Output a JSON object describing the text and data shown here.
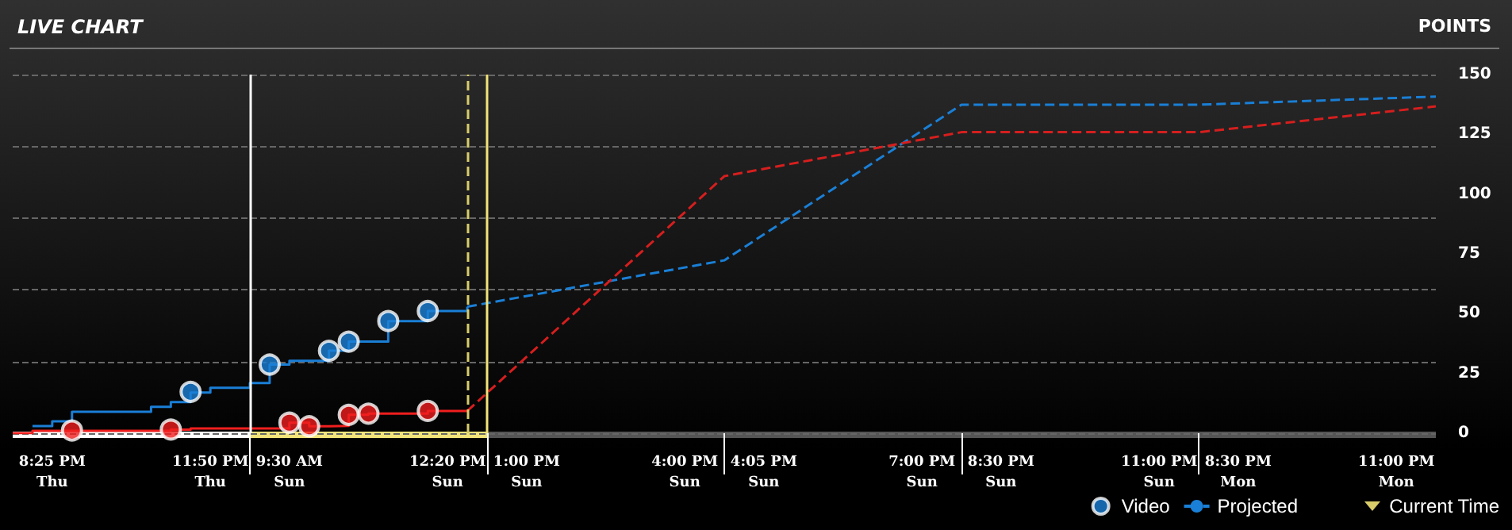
{
  "chart_data": {
    "type": "step",
    "title": "LIVE CHART",
    "ylabel": "POINTS",
    "categories": [
      null,
      null,
      "8:25 PM\nThu",
      null,
      null,
      null,
      null,
      null,
      null,
      null,
      "11:50 PM\nThu",
      null,
      null,
      null,
      "9:30 AM\nSun",
      null,
      null,
      null,
      null,
      null,
      null,
      null,
      "12:20 PM\nSun",
      null,
      null,
      null,
      "1:00 PM\nSun",
      null,
      null,
      null,
      null,
      null,
      null,
      null,
      "4:00 PM\nSun",
      null,
      null,
      null,
      "4:05 PM\nSun",
      null,
      null,
      null,
      null,
      null,
      null,
      null,
      "7:00 PM\nSun",
      null,
      null,
      null,
      "8:30 PM\nSun",
      null,
      null,
      null,
      null,
      null,
      null,
      null,
      "11:00 PM\nSun",
      null,
      null,
      null,
      "8:30 PM\nMon",
      null,
      null,
      null,
      null,
      null,
      null,
      null,
      "11:00 PM\nMon",
      null,
      null
    ],
    "ylim": [
      0,
      150
    ],
    "yticks": [
      0,
      25,
      50,
      75,
      100,
      125,
      150
    ],
    "grid": "y",
    "legend": "bottom right",
    "marker": "none",
    "series": [
      {
        "color": "#1a7fd6",
        "values": [
          null,
          3,
          5,
          9,
          null,
          null,
          null,
          11,
          13,
          17,
          19,
          null,
          21,
          28.7,
          30.3,
          null,
          34.5,
          38.3,
          null,
          46.9,
          null,
          51.1,
          null,
          52.9,
          null,
          null,
          null,
          null,
          null,
          null,
          null,
          null,
          null,
          null,
          null,
          null,
          null,
          null,
          null,
          null,
          null,
          null,
          null,
          null,
          null,
          null,
          null,
          null,
          null,
          null,
          null,
          null,
          null,
          null,
          null,
          null,
          null,
          null,
          null,
          null,
          null,
          null,
          null,
          null,
          null,
          null,
          null,
          null,
          null,
          null,
          null,
          null,
          null
        ]
      },
      {
        "color": "#f01e1e",
        "values": [
          0,
          1,
          null,
          null,
          null,
          null,
          null,
          null,
          1.5,
          2,
          null,
          null,
          null,
          null,
          4.4,
          2.9,
          3.1,
          7.7,
          8.2,
          null,
          null,
          9.3,
          null,
          9.3,
          null,
          null,
          null,
          null,
          null,
          null,
          null,
          null,
          null,
          null,
          null,
          null,
          null,
          null,
          null,
          null,
          null,
          null,
          null,
          null,
          null,
          null,
          null,
          null,
          null,
          null,
          null,
          null,
          null,
          null,
          null,
          null,
          null,
          null,
          null,
          null,
          null,
          null,
          null,
          null,
          null,
          null,
          null,
          null,
          null,
          null,
          null,
          null,
          null
        ]
      },
      {
        "name": "Projected",
        "type": "line",
        "line_style": "dashed",
        "color": "#1a7fd6",
        "values": [
          null,
          null,
          null,
          null,
          null,
          null,
          null,
          null,
          null,
          null,
          null,
          null,
          null,
          null,
          null,
          null,
          null,
          null,
          null,
          null,
          null,
          null,
          null,
          52.9,
          null,
          null,
          null,
          null,
          null,
          null,
          null,
          null,
          null,
          null,
          null,
          null,
          72.3,
          null,
          null,
          null,
          null,
          null,
          null,
          null,
          null,
          null,
          null,
          null,
          137.4,
          null,
          null,
          null,
          null,
          null,
          null,
          null,
          null,
          null,
          null,
          null,
          137.4,
          null,
          null,
          null,
          null,
          null,
          null,
          null,
          null,
          null,
          null,
          null,
          140.8
        ]
      },
      {
        "type": "line",
        "line_style": "dashed",
        "color": "#d61e1e",
        "values": [
          null,
          null,
          null,
          null,
          null,
          null,
          null,
          null,
          null,
          null,
          null,
          null,
          null,
          null,
          null,
          null,
          null,
          null,
          null,
          null,
          null,
          null,
          null,
          9.3,
          null,
          null,
          null,
          null,
          null,
          null,
          null,
          null,
          null,
          null,
          null,
          null,
          107.5,
          null,
          null,
          null,
          null,
          null,
          null,
          null,
          null,
          null,
          null,
          null,
          125.9,
          null,
          null,
          null,
          null,
          null,
          null,
          null,
          null,
          null,
          null,
          null,
          125.9,
          null,
          null,
          null,
          null,
          null,
          null,
          null,
          null,
          null,
          null,
          null,
          136.7
        ]
      },
      {
        "name": "Video",
        "type": "scatter",
        "marker": "circle",
        "color": "#1a7fd6",
        "values": [
          null,
          null,
          null,
          null,
          null,
          null,
          null,
          null,
          null,
          17.3,
          null,
          null,
          null,
          28.7,
          null,
          null,
          34.5,
          38.3,
          null,
          46.9,
          null,
          51.1,
          null,
          null,
          null,
          null,
          null,
          null,
          null,
          null,
          null,
          null,
          null,
          null,
          null,
          null,
          null,
          null,
          null,
          null,
          null,
          null,
          null,
          null,
          null,
          null,
          null,
          null,
          null,
          null,
          null,
          null,
          null,
          null,
          null,
          null,
          null,
          null,
          null,
          null,
          null,
          null,
          null,
          null,
          null,
          null,
          null,
          null,
          null,
          null,
          null,
          null,
          null
        ]
      },
      {
        "type": "scatter",
        "marker": "circle",
        "color": "#f01e1e",
        "values": [
          null,
          null,
          null,
          1.1,
          null,
          null,
          null,
          null,
          1.5,
          null,
          null,
          null,
          null,
          null,
          4.4,
          2.9,
          null,
          7.7,
          8.2,
          null,
          null,
          9.3,
          null,
          null,
          null,
          null,
          null,
          null,
          null,
          null,
          null,
          null,
          null,
          null,
          null,
          null,
          null,
          null,
          null,
          null,
          null,
          null,
          null,
          null,
          null,
          null,
          null,
          null,
          null,
          null,
          null,
          null,
          null,
          null,
          null,
          null,
          null,
          null,
          null,
          null,
          null,
          null,
          null,
          null,
          null,
          null,
          null,
          null,
          null,
          null,
          null,
          null,
          null
        ]
      }
    ],
    "annotations": [
      "Current Time"
    ]
  }
}
